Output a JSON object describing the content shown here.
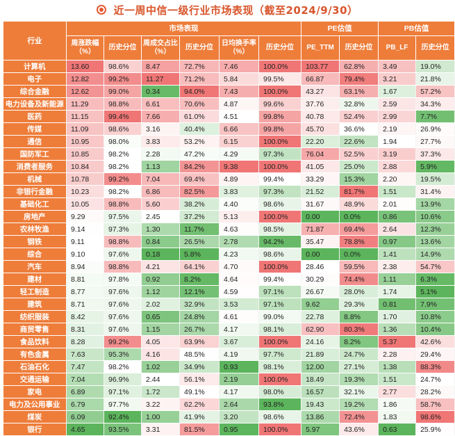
{
  "title": "近一周中信一级行业市场表现（截至2024/9/30）",
  "headers": {
    "industry": "行业",
    "market": "市场表现",
    "pe": "PE估值",
    "pb": "PB估值",
    "sub": [
      "周涨跌幅（%）",
      "历史分位",
      "周成交占比（%）",
      "历史分位",
      "日均换手率（%）",
      "历史分位",
      "PE_TTM",
      "历史分位",
      "PB_LF",
      "历史分位"
    ]
  },
  "rows": [
    [
      "计算机",
      "13.60",
      "98.6%",
      "8.47",
      "72.7%",
      "7.46",
      "100.0%",
      "103.77",
      "62.8%",
      "3.49",
      "19.0%"
    ],
    [
      "电子",
      "12.82",
      "99.2%",
      "11.27",
      "71.2%",
      "5.84",
      "99.5%",
      "66.87",
      "79.4%",
      "3.21",
      "21.8%"
    ],
    [
      "综合金融",
      "12.62",
      "99.0%",
      "0.34",
      "94.0%",
      "7.43",
      "100.0%",
      "43.27",
      "63.1%",
      "1.67",
      "57.2%"
    ],
    [
      "电力设备及新能源",
      "11.29",
      "98.8%",
      "6.61",
      "70.6%",
      "4.87",
      "99.6%",
      "37.76",
      "32.8%",
      "2.59",
      "34.3%"
    ],
    [
      "医药",
      "11.15",
      "99.4%",
      "7.66",
      "61.0%",
      "4.51",
      "99.8%",
      "40.78",
      "52.4%",
      "2.99",
      "7.7%"
    ],
    [
      "传媒",
      "11.09",
      "98.6%",
      "3.16",
      "40.4%",
      "6.66",
      "99.8%",
      "45.70",
      "36.6%",
      "2.19",
      "26.9%"
    ],
    [
      "通信",
      "10.95",
      "98.0%",
      "3.83",
      "53.2%",
      "6.15",
      "100.0%",
      "22.20",
      "22.6%",
      "1.94",
      "27.7%"
    ],
    [
      "国防军工",
      "10.85",
      "98.2%",
      "2.28",
      "47.2%",
      "4.29",
      "97.3%",
      "76.04",
      "52.5%",
      "3.19",
      "37.3%"
    ],
    [
      "消费者服务",
      "10.84",
      "98.2%",
      "1.13",
      "84.2%",
      "9.38",
      "100.0%",
      "41.05",
      "25.0%",
      "2.88",
      "5.9%"
    ],
    [
      "机械",
      "10.78",
      "99.2%",
      "7.04",
      "69.4%",
      "4.89",
      "99.4%",
      "33.29",
      "15.3%",
      "2.20",
      "19.5%"
    ],
    [
      "非银行金融",
      "10.23",
      "98.2%",
      "6.86",
      "82.5%",
      "3.83",
      "97.3%",
      "21.52",
      "81.7%",
      "1.51",
      "31.4%"
    ],
    [
      "基础化工",
      "10.05",
      "98.8%",
      "5.60",
      "38.2%",
      "4.40",
      "98.6%",
      "31.67",
      "48.9%",
      "2.01",
      "13.9%"
    ],
    [
      "房地产",
      "9.29",
      "97.5%",
      "2.45",
      "37.2%",
      "5.13",
      "100.0%",
      "0.00",
      "0.0%",
      "0.86",
      "10.6%"
    ],
    [
      "农林牧渔",
      "9.14",
      "97.3%",
      "1.30",
      "11.7%",
      "4.63",
      "98.5%",
      "71.87",
      "69.4%",
      "2.64",
      "12.3%"
    ],
    [
      "钢铁",
      "9.11",
      "98.8%",
      "0.84",
      "26.5%",
      "2.78",
      "94.2%",
      "35.47",
      "78.8%",
      "0.97",
      "13.6%"
    ],
    [
      "综合",
      "9.10",
      "97.6%",
      "0.18",
      "5.8%",
      "4.23",
      "98.6%",
      "0.00",
      "0.0%",
      "1.41",
      "14.9%"
    ],
    [
      "汽车",
      "8.94",
      "98.8%",
      "4.21",
      "64.1%",
      "4.70",
      "100.0%",
      "28.46",
      "59.5%",
      "2.38",
      "54.7%"
    ],
    [
      "建材",
      "8.81",
      "97.8%",
      "0.92",
      "8.2%",
      "4.64",
      "99.4%",
      "30.29",
      "74.4%",
      "1.11",
      "6.3%"
    ],
    [
      "轻工制造",
      "8.77",
      "97.6%",
      "1.12",
      "12.1%",
      "4.59",
      "97.1%",
      "26.67",
      "28.0%",
      "1.74",
      "5.1%"
    ],
    [
      "建筑",
      "8.71",
      "97.6%",
      "2.02",
      "32.9%",
      "3.53",
      "97.1%",
      "9.62",
      "29.3%",
      "0.81",
      "7.9%"
    ],
    [
      "纺织服装",
      "8.42",
      "97.6%",
      "0.65",
      "24.8%",
      "4.61",
      "99.0%",
      "22.78",
      "8.8%",
      "1.70",
      "10.8%"
    ],
    [
      "商贸零售",
      "8.31",
      "97.6%",
      "1.15",
      "26.7%",
      "4.17",
      "98.1%",
      "62.90",
      "80.3%",
      "1.36",
      "10.4%"
    ],
    [
      "食品饮料",
      "8.28",
      "99.2%",
      "4.05",
      "63.9%",
      "3.67",
      "100.0%",
      "24.16",
      "8.2%",
      "5.37",
      "42.6%"
    ],
    [
      "有色金属",
      "7.63",
      "95.3%",
      "4.16",
      "48.5%",
      "4.19",
      "97.7%",
      "21.89",
      "24.7%",
      "2.28",
      "29.4%"
    ],
    [
      "石油石化",
      "7.47",
      "98.2%",
      "1.02",
      "34.9%",
      "0.93",
      "98.1%",
      "12.00",
      "27.1%",
      "1.38",
      "88.3%"
    ],
    [
      "交通运输",
      "7.04",
      "96.9%",
      "2.44",
      "56.1%",
      "2.19",
      "100.0%",
      "18.49",
      "19.3%",
      "1.51",
      "24.7%"
    ],
    [
      "家电",
      "6.89",
      "97.1%",
      "1.72",
      "49.1%",
      "4.17",
      "98.0%",
      "16.57",
      "32.1%",
      "2.77",
      "28.2%"
    ],
    [
      "电力及公用事业",
      "6.79",
      "97.7%",
      "3.22",
      "62.2%",
      "2.64",
      "93.8%",
      "19.43",
      "19.2%",
      "1.86",
      "58.7%"
    ],
    [
      "煤炭",
      "6.09",
      "92.4%",
      "1.00",
      "41.9%",
      "3.20",
      "98.6%",
      "13.86",
      "72.4%",
      "1.83",
      "98.6%"
    ],
    [
      "银行",
      "4.65",
      "93.5%",
      "3.31",
      "81.5%",
      "0.95",
      "100.0%",
      "5.97",
      "43.6%",
      "0.63",
      "25.9%"
    ]
  ]
}
